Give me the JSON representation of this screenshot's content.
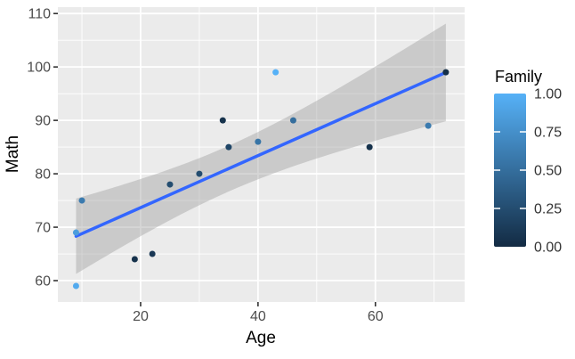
{
  "chart_data": {
    "type": "scatter",
    "title": "",
    "xlabel": "Age",
    "ylabel": "Math",
    "x_ticks": [
      20,
      40,
      60
    ],
    "x_minor_ticks": [
      10,
      30,
      50,
      70
    ],
    "y_ticks": [
      60,
      70,
      80,
      90,
      100,
      110
    ],
    "y_minor_ticks": [
      65,
      75,
      85,
      95,
      105
    ],
    "xlim": [
      5.9,
      75.2
    ],
    "ylim": [
      56.0,
      111.2
    ],
    "grid": true,
    "legend_position": "right",
    "panel_bg": "#EBEBEB",
    "grid_color": "#FFFFFF",
    "tick_mark_color": "#333333",
    "tick_label_color": "#4D4D4D",
    "points": [
      {
        "age": 9,
        "math": 59,
        "family": 0.95
      },
      {
        "age": 9,
        "math": 69,
        "family": 0.85
      },
      {
        "age": 10,
        "math": 75,
        "family": 0.6
      },
      {
        "age": 19,
        "math": 64,
        "family": 0.05
      },
      {
        "age": 22,
        "math": 65,
        "family": 0.1
      },
      {
        "age": 25,
        "math": 78,
        "family": 0.25
      },
      {
        "age": 30,
        "math": 80,
        "family": 0.25
      },
      {
        "age": 34,
        "math": 90,
        "family": 0.05
      },
      {
        "age": 35,
        "math": 85,
        "family": 0.2
      },
      {
        "age": 40,
        "math": 86,
        "family": 0.55
      },
      {
        "age": 43,
        "math": 99,
        "family": 1.0
      },
      {
        "age": 46,
        "math": 90,
        "family": 0.5
      },
      {
        "age": 59,
        "math": 85,
        "family": 0.05
      },
      {
        "age": 69,
        "math": 89,
        "family": 0.6
      },
      {
        "age": 72,
        "math": 99,
        "family": 0.03
      }
    ],
    "smooth": {
      "method": "lm",
      "level": 0.95,
      "line_color": "#3366FF",
      "band_fill": "#999999",
      "band_opacity": 0.4
    },
    "legend": {
      "title": "Family",
      "tick_labels": [
        "1.00",
        "0.75",
        "0.50",
        "0.25",
        "0.00"
      ],
      "tick_values": [
        1.0,
        0.75,
        0.5,
        0.25,
        0.0
      ],
      "high_color": "#56B1F7",
      "low_color": "#132B43"
    }
  }
}
